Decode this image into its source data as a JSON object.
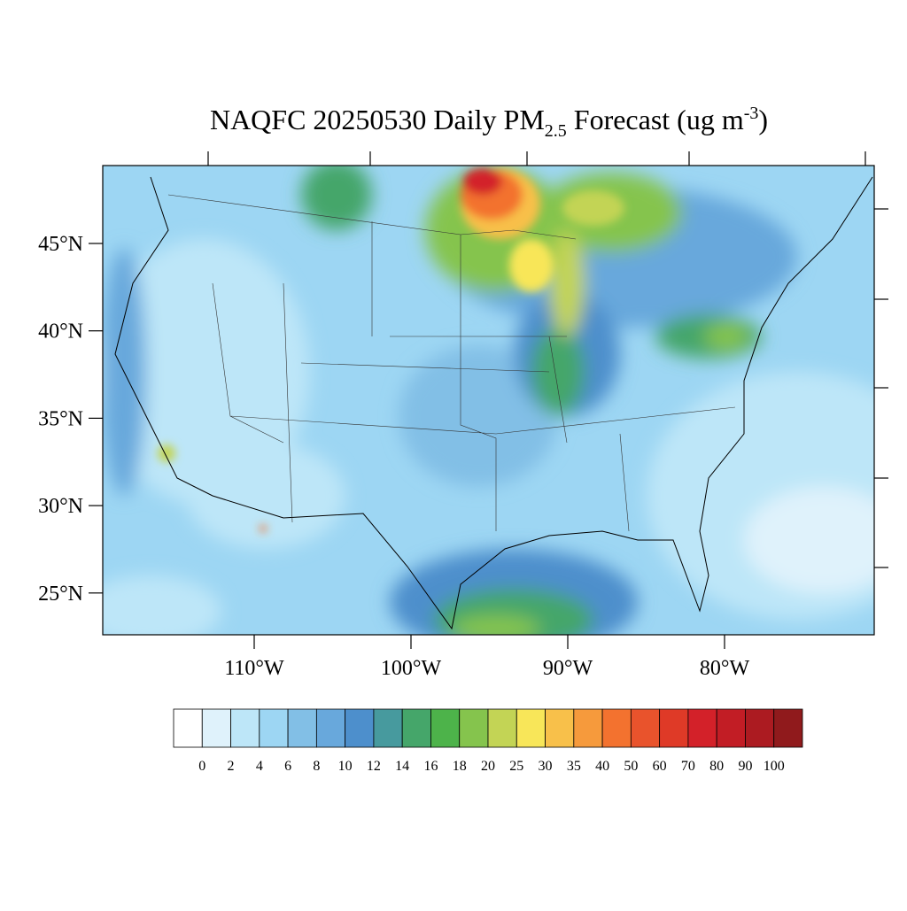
{
  "map": {
    "title": {
      "main": "NAQFC 20250530 Daily PM",
      "sub": "2.5",
      "rest": " Forecast (ug m",
      "sup": "-3",
      "close": ")"
    },
    "lat_ticks": [
      {
        "value": 45,
        "label": "45°N"
      },
      {
        "value": 40,
        "label": "40°N"
      },
      {
        "value": 35,
        "label": "35°N"
      },
      {
        "value": 30,
        "label": "30°N"
      },
      {
        "value": 25,
        "label": "25°N"
      }
    ],
    "lon_ticks": [
      {
        "value": 110,
        "label": "110°W"
      },
      {
        "value": 100,
        "label": "100°W"
      },
      {
        "value": 90,
        "label": "90°W"
      },
      {
        "value": 80,
        "label": "80°W"
      }
    ],
    "colorbar": {
      "levels": [
        0,
        2,
        4,
        6,
        8,
        10,
        12,
        14,
        16,
        18,
        20,
        25,
        30,
        35,
        40,
        50,
        60,
        70,
        80,
        90,
        100
      ],
      "colors": [
        "#ffffff",
        "#dff2fb",
        "#bde6f8",
        "#9dd6f3",
        "#82bfe6",
        "#68a8dc",
        "#4d8fcc",
        "#479a9e",
        "#45a66a",
        "#4db34a",
        "#85c44d",
        "#c3d455",
        "#f8e659",
        "#f8c04a",
        "#f69a3c",
        "#f3722f",
        "#e9532c",
        "#df3a27",
        "#d32129",
        "#c21d25",
        "#ac1b21",
        "#901a1c"
      ]
    }
  }
}
